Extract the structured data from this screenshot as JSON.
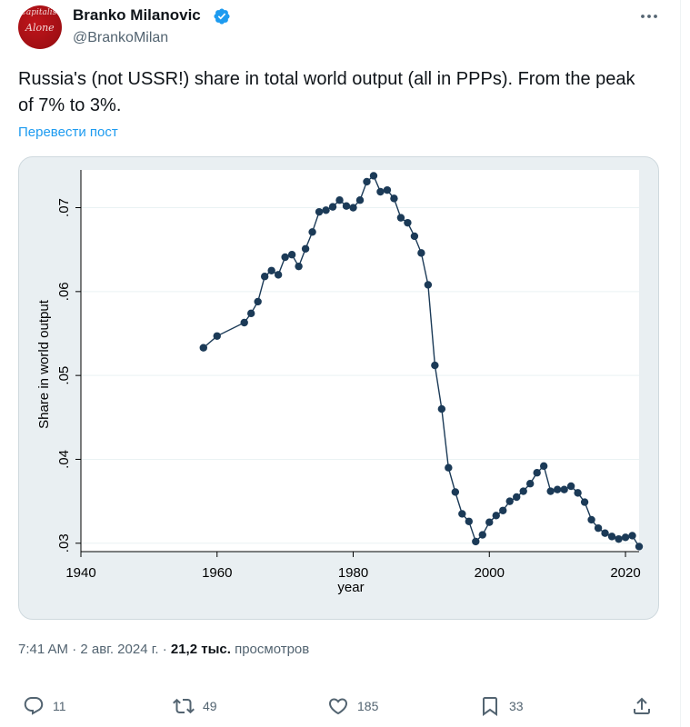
{
  "author": {
    "name": "Branko Milanovic",
    "handle": "@BrankoMilan",
    "avatar_text": "Capitalism Alone",
    "verified_color": "#1d9bf0"
  },
  "tweet": {
    "text": "Russia's (not USSR!) share in total world output (all in PPPs). From the peak of 7% to 3%.",
    "translate_label": "Перевести пост"
  },
  "meta": {
    "time": "7:41 AM",
    "separator": " · ",
    "date": "2 авг. 2024 г.",
    "views_count": "21,2 тыс.",
    "views_label": "просмотров"
  },
  "actions": {
    "replies": "11",
    "retweets": "49",
    "likes": "185",
    "bookmarks": "33"
  },
  "chart_data": {
    "type": "line",
    "title": "",
    "xlabel": "year",
    "ylabel": "Share in world output",
    "xlim": [
      1940,
      2022
    ],
    "ylim": [
      0.029,
      0.0745
    ],
    "xticks": [
      1940,
      1960,
      1980,
      2000,
      2020
    ],
    "yticks": [
      0.03,
      0.04,
      0.05,
      0.06,
      0.07
    ],
    "ytick_labels": [
      ".03",
      ".04",
      ".05",
      ".06",
      ".07"
    ],
    "grid": true,
    "line_color": "#1b3a57",
    "x": [
      1958,
      1960,
      1964,
      1965,
      1966,
      1967,
      1968,
      1969,
      1970,
      1971,
      1972,
      1973,
      1974,
      1975,
      1976,
      1977,
      1978,
      1979,
      1980,
      1981,
      1982,
      1983,
      1984,
      1985,
      1986,
      1987,
      1988,
      1989,
      1990,
      1991,
      1992,
      1993,
      1994,
      1995,
      1996,
      1997,
      1998,
      1999,
      2000,
      2001,
      2002,
      2003,
      2004,
      2005,
      2006,
      2007,
      2008,
      2009,
      2010,
      2011,
      2012,
      2013,
      2014,
      2015,
      2016,
      2017,
      2018,
      2019,
      2020,
      2021,
      2022
    ],
    "y": [
      0.0533,
      0.0547,
      0.0563,
      0.0574,
      0.0588,
      0.0618,
      0.0625,
      0.062,
      0.0641,
      0.0644,
      0.063,
      0.0651,
      0.0671,
      0.0695,
      0.0697,
      0.0701,
      0.0709,
      0.0702,
      0.07,
      0.0709,
      0.0731,
      0.0738,
      0.0719,
      0.0721,
      0.0711,
      0.0688,
      0.0682,
      0.0666,
      0.0646,
      0.0608,
      0.0512,
      0.046,
      0.039,
      0.0361,
      0.0335,
      0.0326,
      0.0302,
      0.031,
      0.0325,
      0.0333,
      0.0339,
      0.035,
      0.0355,
      0.0362,
      0.0371,
      0.0384,
      0.0392,
      0.0362,
      0.0364,
      0.0364,
      0.0368,
      0.036,
      0.0349,
      0.0328,
      0.0318,
      0.0312,
      0.0308,
      0.0305,
      0.0307,
      0.0309,
      0.0296
    ]
  }
}
